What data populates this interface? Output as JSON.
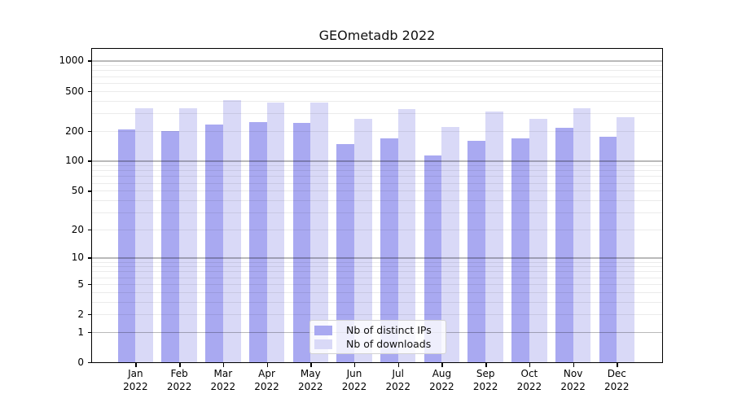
{
  "chart_data": {
    "type": "bar",
    "title": "GEOmetadb 2022",
    "categories": [
      "Jan 2022",
      "Feb 2022",
      "Mar 2022",
      "Apr 2022",
      "May 2022",
      "Jun 2022",
      "Jul 2022",
      "Aug 2022",
      "Sep 2022",
      "Oct 2022",
      "Nov 2022",
      "Dec 2022"
    ],
    "series": [
      {
        "name": "Nb of distinct IPs",
        "color": "#a9a9f1",
        "values": [
          205,
          198,
          232,
          245,
          239,
          146,
          168,
          114,
          159,
          168,
          215,
          175
        ]
      },
      {
        "name": "Nb of downloads",
        "color": "#d9d9f7",
        "values": [
          337,
          338,
          406,
          384,
          384,
          264,
          330,
          217,
          312,
          263,
          333,
          273
        ]
      }
    ],
    "y_axis": {
      "scale": "log1p",
      "ticks": [
        1000,
        500,
        200,
        100,
        50,
        20,
        10,
        5,
        2,
        1,
        0
      ],
      "range": [
        0,
        1300
      ],
      "grid": "horizontal, minor log gridlines, darker lines at powers of 10"
    },
    "x_axis": {
      "label_format": "month over year, two lines"
    },
    "legend": {
      "position": "bottom-center",
      "items": [
        "Nb of distinct IPs",
        "Nb of downloads"
      ]
    }
  }
}
